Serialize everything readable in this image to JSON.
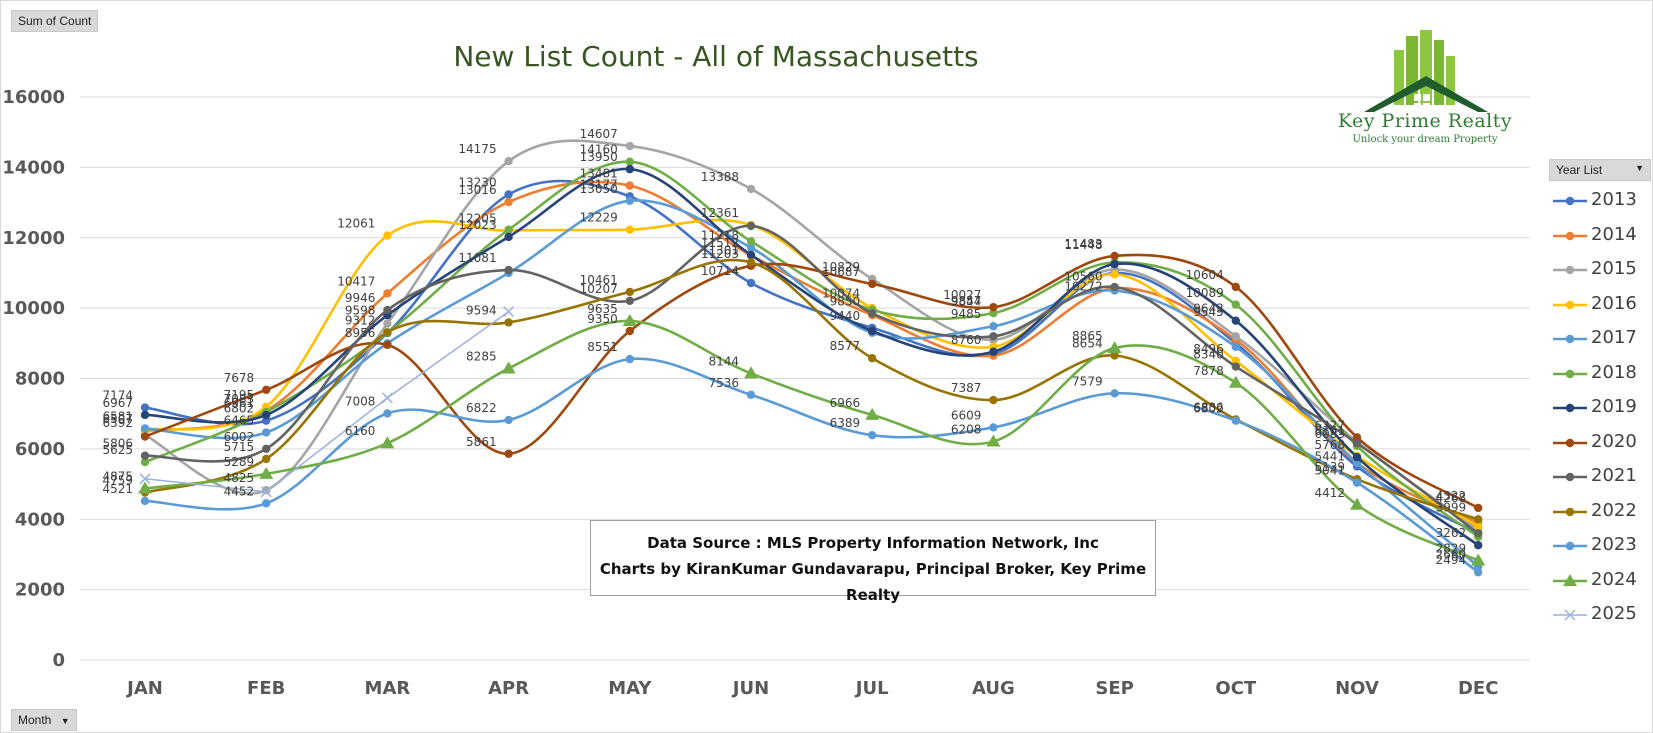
{
  "filters": {
    "values_field": "Sum of Count",
    "axis_field": "Month",
    "legend_field": "Year List"
  },
  "source_note": {
    "line1": "Data Source : MLS Property Information Network, Inc",
    "line2": "Charts by KiranKumar Gundavarapu, Principal Broker, Key Prime Realty"
  },
  "logo": {
    "name": "Key Prime Realty",
    "tagline": "Unlock your dream Property",
    "icon": "house-buildings-icon"
  },
  "chart_data": {
    "type": "line",
    "title": "New List Count - All of Massachusetts",
    "xlabel": "",
    "ylabel": "",
    "categories": [
      "JAN",
      "FEB",
      "MAR",
      "APR",
      "MAY",
      "JUN",
      "JUL",
      "AUG",
      "SEP",
      "OCT",
      "NOV",
      "DEC"
    ],
    "ylim": [
      0,
      16000
    ],
    "yticks": [
      0,
      2000,
      4000,
      6000,
      8000,
      10000,
      12000,
      14000,
      16000
    ],
    "grid": true,
    "smooth": true,
    "legend_position": "right",
    "series": [
      {
        "name": "2013",
        "color": "#4472c4",
        "marker": "circle",
        "values": [
          7174,
          6802,
          9290,
          13230,
          13177,
          10714,
          9440,
          8700,
          11000,
          9000,
          5500,
          3600
        ]
      },
      {
        "name": "2014",
        "color": "#ed7d31",
        "marker": "circle",
        "values": [
          6507,
          7083,
          10417,
          13016,
          13481,
          11500,
          9800,
          8650,
          10560,
          9100,
          5600,
          3900
        ]
      },
      {
        "name": "2015",
        "color": "#a5a5a5",
        "marker": "circle",
        "values": [
          6392,
          4825,
          9560,
          14175,
          14607,
          13388,
          10829,
          9100,
          11100,
          9200,
          6200,
          3700
        ]
      },
      {
        "name": "2016",
        "color": "#ffc000",
        "marker": "circle",
        "values": [
          6542,
          7195,
          12061,
          12205,
          12229,
          12361,
          10000,
          8900,
          10960,
          8500,
          5800,
          3800
        ]
      },
      {
        "name": "2017",
        "color": "#5b9bd5",
        "marker": "circle",
        "values": [
          6581,
          6465,
          9000,
          11000,
          13050,
          11718,
          9300,
          9485,
          10500,
          8900,
          5600,
          2660
        ]
      },
      {
        "name": "2018",
        "color": "#70ad47",
        "marker": "circle",
        "values": [
          5625,
          7050,
          9300,
          12229,
          14160,
          11900,
          9950,
          9857,
          11300,
          10100,
          6083,
          3500
        ]
      },
      {
        "name": "2019",
        "color": "#264478",
        "marker": "circle",
        "values": [
          6967,
          6961,
          9800,
          12023,
          13950,
          11512,
          9350,
          8760,
          11250,
          9643,
          5768,
          3262
        ]
      },
      {
        "name": "2020",
        "color": "#9e480e",
        "marker": "circle",
        "values": [
          6350,
          7678,
          8956,
          5861,
          9350,
          11203,
          10687,
          10027,
          11483,
          10604,
          6327,
          4322
        ]
      },
      {
        "name": "2021",
        "color": "#636363",
        "marker": "circle",
        "values": [
          5806,
          6002,
          9946,
          11081,
          10207,
          12335,
          9850,
          9200,
          10600,
          8340,
          6161,
          3600
        ]
      },
      {
        "name": "2022",
        "color": "#997300",
        "marker": "circle",
        "values": [
          4759,
          5715,
          9312,
          9594,
          10461,
          11301,
          8577,
          7387,
          8654,
          6836,
          5139,
          3999
        ]
      },
      {
        "name": "2023",
        "color": "#5b9bd5",
        "marker": "circle",
        "values": [
          4521,
          4452,
          7008,
          6822,
          8551,
          7536,
          6389,
          6609,
          7579,
          6802,
          5041,
          2494
        ]
      },
      {
        "name": "2024",
        "color": "#70ad47",
        "marker": "triangle",
        "values": [
          4875,
          5289,
          6160,
          8285,
          9635,
          8144,
          6966,
          6208,
          8865,
          7878,
          4412,
          2829
        ]
      },
      {
        "name": "2025",
        "color": "#9ab0dc",
        "marker": "cross",
        "values": [
          5150,
          4780,
          7450,
          9900,
          null,
          null,
          null,
          null,
          null,
          null,
          null,
          null
        ]
      }
    ],
    "data_labels": [
      {
        "c": 0,
        "v": 7174
      },
      {
        "c": 0,
        "v": 6967
      },
      {
        "c": 0,
        "v": 6581
      },
      {
        "c": 0,
        "v": 6507
      },
      {
        "c": 0,
        "v": 6392
      },
      {
        "c": 0,
        "v": 5806
      },
      {
        "c": 0,
        "v": 5625
      },
      {
        "c": 0,
        "v": 4759
      },
      {
        "c": 0,
        "v": 4875
      },
      {
        "c": 0,
        "v": 4521
      },
      {
        "c": 1,
        "v": 7678
      },
      {
        "c": 1,
        "v": 7195
      },
      {
        "c": 1,
        "v": 7083
      },
      {
        "c": 1,
        "v": 6961
      },
      {
        "c": 1,
        "v": 6802
      },
      {
        "c": 1,
        "v": 6465
      },
      {
        "c": 1,
        "v": 6002
      },
      {
        "c": 1,
        "v": 5715
      },
      {
        "c": 1,
        "v": 4825
      },
      {
        "c": 1,
        "v": 5289
      },
      {
        "c": 1,
        "v": 4452
      },
      {
        "c": 2,
        "v": 12061
      },
      {
        "c": 2,
        "v": 10417
      },
      {
        "c": 2,
        "v": 9946
      },
      {
        "c": 2,
        "v": 9598
      },
      {
        "c": 2,
        "v": 9312
      },
      {
        "c": 2,
        "v": 8956
      },
      {
        "c": 2,
        "v": 7008
      },
      {
        "c": 2,
        "v": 6160
      },
      {
        "c": 3,
        "v": 14175
      },
      {
        "c": 3,
        "v": 13230
      },
      {
        "c": 3,
        "v": 13016
      },
      {
        "c": 3,
        "v": 12205
      },
      {
        "c": 3,
        "v": 12023
      },
      {
        "c": 3,
        "v": 11081
      },
      {
        "c": 3,
        "v": 9594
      },
      {
        "c": 3,
        "v": 8285
      },
      {
        "c": 3,
        "v": 6822
      },
      {
        "c": 3,
        "v": 5861
      },
      {
        "c": 4,
        "v": 14607
      },
      {
        "c": 4,
        "v": 14160
      },
      {
        "c": 4,
        "v": 13950
      },
      {
        "c": 4,
        "v": 13481
      },
      {
        "c": 4,
        "v": 13177
      },
      {
        "c": 4,
        "v": 13050
      },
      {
        "c": 4,
        "v": 12229
      },
      {
        "c": 4,
        "v": 10461
      },
      {
        "c": 4,
        "v": 10207
      },
      {
        "c": 4,
        "v": 9350
      },
      {
        "c": 4,
        "v": 9635
      },
      {
        "c": 4,
        "v": 8551
      },
      {
        "c": 5,
        "v": 13388
      },
      {
        "c": 5,
        "v": 12361
      },
      {
        "c": 5,
        "v": 11718
      },
      {
        "c": 5,
        "v": 11512
      },
      {
        "c": 5,
        "v": 11301
      },
      {
        "c": 5,
        "v": 11203
      },
      {
        "c": 5,
        "v": 10714
      },
      {
        "c": 5,
        "v": 8144
      },
      {
        "c": 5,
        "v": 7536
      },
      {
        "c": 6,
        "v": 10829
      },
      {
        "c": 6,
        "v": 10687
      },
      {
        "c": 6,
        "v": 10074
      },
      {
        "c": 6,
        "v": 9850
      },
      {
        "c": 6,
        "v": 9440
      },
      {
        "c": 6,
        "v": 8577
      },
      {
        "c": 6,
        "v": 6966
      },
      {
        "c": 6,
        "v": 6389
      },
      {
        "c": 7,
        "v": 10027
      },
      {
        "c": 7,
        "v": 9844
      },
      {
        "c": 7,
        "v": 9857
      },
      {
        "c": 7,
        "v": 9485
      },
      {
        "c": 7,
        "v": 8760
      },
      {
        "c": 7,
        "v": 7387
      },
      {
        "c": 7,
        "v": 6609
      },
      {
        "c": 7,
        "v": 6208
      },
      {
        "c": 8,
        "v": 11448
      },
      {
        "c": 8,
        "v": 11483
      },
      {
        "c": 8,
        "v": 10560
      },
      {
        "c": 8,
        "v": 10272
      },
      {
        "c": 8,
        "v": 8654
      },
      {
        "c": 8,
        "v": 8865
      },
      {
        "c": 8,
        "v": 7579
      },
      {
        "c": 9,
        "v": 10604
      },
      {
        "c": 9,
        "v": 10089
      },
      {
        "c": 9,
        "v": 9545
      },
      {
        "c": 9,
        "v": 9643
      },
      {
        "c": 9,
        "v": 8340
      },
      {
        "c": 9,
        "v": 8496
      },
      {
        "c": 9,
        "v": 7878
      },
      {
        "c": 9,
        "v": 6836
      },
      {
        "c": 9,
        "v": 6802
      },
      {
        "c": 10,
        "v": 6327
      },
      {
        "c": 10,
        "v": 6083
      },
      {
        "c": 10,
        "v": 6161
      },
      {
        "c": 10,
        "v": 5768
      },
      {
        "c": 10,
        "v": 5441
      },
      {
        "c": 10,
        "v": 5139
      },
      {
        "c": 10,
        "v": 5041
      },
      {
        "c": 10,
        "v": 4412
      },
      {
        "c": 11,
        "v": 4322
      },
      {
        "c": 11,
        "v": 4268
      },
      {
        "c": 11,
        "v": 3999
      },
      {
        "c": 11,
        "v": 3262
      },
      {
        "c": 11,
        "v": 2660
      },
      {
        "c": 11,
        "v": 2829
      },
      {
        "c": 11,
        "v": 2494
      }
    ]
  }
}
